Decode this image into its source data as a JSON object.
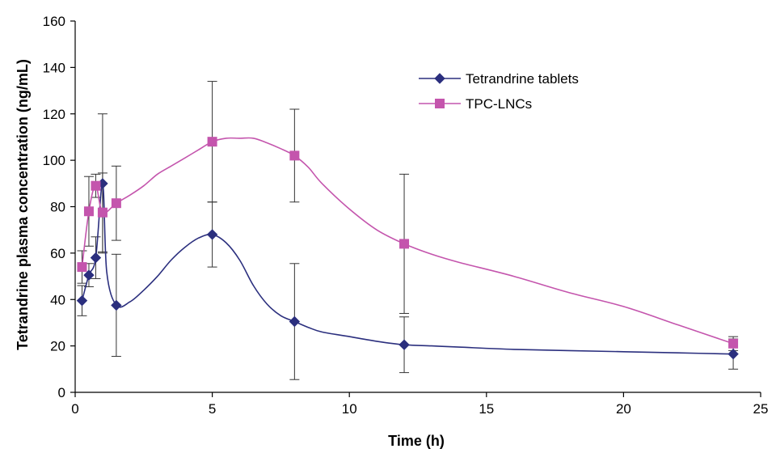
{
  "chart_data": {
    "type": "line",
    "xlabel": "Time (h)",
    "ylabel": "Tetrandrine plasma concentration (ng/mL)",
    "xlim": [
      0,
      25
    ],
    "ylim": [
      0,
      160
    ],
    "xticks": [
      0,
      5,
      10,
      15,
      20,
      25
    ],
    "yticks": [
      0,
      20,
      40,
      60,
      80,
      100,
      120,
      140,
      160
    ],
    "grid": false,
    "legend_position": "top-right",
    "series": [
      {
        "name": "Tetrandrine tablets",
        "color": "#2b2f7e",
        "marker": "diamond",
        "x": [
          0.25,
          0.5,
          0.75,
          1,
          1.5,
          5,
          8,
          12,
          24
        ],
        "y": [
          39.5,
          50.5,
          58,
          90,
          37.5,
          68,
          30.5,
          20.5,
          16.5
        ],
        "err": [
          6.5,
          5,
          9,
          30,
          22,
          14,
          25,
          12,
          6.5
        ],
        "curve_x": [
          0.25,
          0.5,
          0.75,
          1,
          1.15,
          1.5,
          2,
          2.5,
          3,
          3.5,
          4,
          4.5,
          5,
          5.5,
          6,
          6.5,
          7,
          7.5,
          8,
          8.5,
          9,
          10,
          11,
          12,
          13,
          14,
          16,
          18,
          20,
          22,
          24
        ],
        "curve_y": [
          39.5,
          50.5,
          58,
          90,
          52,
          37.5,
          39,
          44,
          50,
          57,
          62.5,
          66.5,
          68,
          64.5,
          57,
          46,
          38,
          33,
          30.5,
          28,
          26,
          24,
          22,
          20.5,
          20,
          19.5,
          18.5,
          18,
          17.5,
          17,
          16.5
        ]
      },
      {
        "name": "TPC-LNCs",
        "color": "#c455ad",
        "marker": "square",
        "x": [
          0.25,
          0.5,
          0.75,
          1,
          1.5,
          5,
          8,
          12,
          24
        ],
        "y": [
          54,
          78,
          89,
          77.5,
          81.5,
          108,
          102,
          64,
          21
        ],
        "err": [
          7,
          15,
          5,
          17,
          16,
          26,
          20,
          30,
          3
        ],
        "curve_x": [
          0.25,
          0.5,
          0.75,
          1,
          1.5,
          2,
          2.5,
          3,
          3.5,
          4,
          4.5,
          5,
          5.5,
          6,
          6.5,
          7,
          7.5,
          8,
          8.5,
          9,
          10,
          11,
          12,
          13,
          14,
          16,
          18,
          20,
          22,
          24
        ],
        "curve_y": [
          54,
          78,
          89,
          77.5,
          81.5,
          85,
          89,
          94,
          97.5,
          101,
          104.5,
          108,
          109.5,
          109.5,
          109.5,
          107.5,
          105,
          102,
          97,
          90,
          79,
          70,
          64,
          59.5,
          56,
          50,
          43,
          37,
          29,
          21
        ]
      }
    ]
  }
}
